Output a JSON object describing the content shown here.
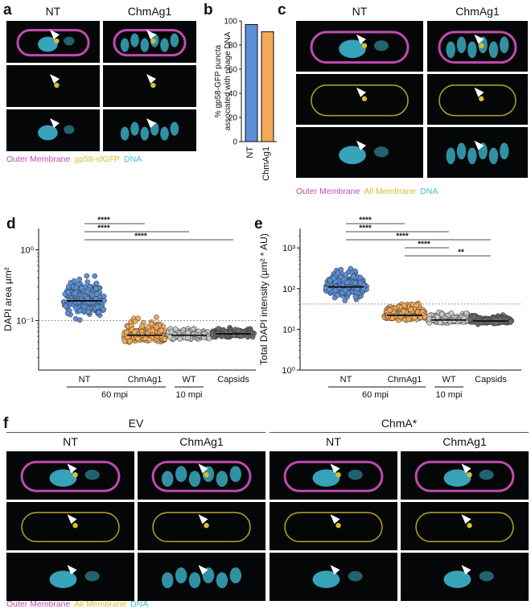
{
  "panels": {
    "a": "a",
    "b": "b",
    "c": "c",
    "d": "d",
    "e": "e",
    "f": "f"
  },
  "colors": {
    "outer_membrane": "#c04ab0",
    "gp58": "#d4c12a",
    "all_membrane": "#d4c12a",
    "dna": "#3fc0d8",
    "nt_bar": "#5b8fd6",
    "chm_bar": "#f2a957",
    "arrow_white": "#ffffff",
    "arrow_orange": "#f07a3a"
  },
  "panel_a": {
    "columns": [
      "NT",
      "ChmAg1"
    ],
    "legend": [
      {
        "text": "Outer Membrane",
        "color": "#c04ab0"
      },
      {
        "text": "gp58-sfGFP",
        "color": "#d4c12a"
      },
      {
        "text": "DNA",
        "color": "#3fc0d8"
      }
    ]
  },
  "panel_c": {
    "columns": [
      "NT",
      "ChmAg1"
    ],
    "legend": [
      {
        "text": "Outer Membrane",
        "color": "#c04ab0"
      },
      {
        "text": "All Membrane",
        "color": "#d4c12a"
      },
      {
        "text": "DNA",
        "color": "#3fc0d8"
      }
    ]
  },
  "panel_f": {
    "groups": [
      "EV",
      "ChmA*"
    ],
    "columns": [
      "NT",
      "ChmAg1",
      "NT",
      "ChmAg1"
    ],
    "legend": [
      {
        "text": "Outer Membrane",
        "color": "#c04ab0"
      },
      {
        "text": "All Membrane",
        "color": "#d4c12a"
      },
      {
        "text": "DNA",
        "color": "#3fc0d8"
      }
    ]
  },
  "chart_data": [
    {
      "panel": "b",
      "type": "bar",
      "categories": [
        "NT",
        "ChmAg1"
      ],
      "values": [
        97,
        91
      ],
      "ylabel": "% gp58-GFP puncta associated with phage DNA",
      "ylim": [
        0,
        100
      ],
      "yticks": [
        "0",
        "20",
        "40",
        "60",
        "80",
        "100"
      ]
    },
    {
      "panel": "d",
      "type": "scatter",
      "ylabel": "DAPI area μm²",
      "yscale": "log",
      "ylim": [
        0.02,
        2
      ],
      "yticks": [
        "10⁻¹",
        "10⁰"
      ],
      "categories": [
        "NT",
        "ChmAg1",
        "WT",
        "Capsids"
      ],
      "medians": [
        0.19,
        0.062,
        0.062,
        0.065
      ],
      "threshold": 0.1,
      "group_labels": [
        "60 mpi",
        "10 mpi"
      ],
      "significance": [
        "****",
        "****",
        "****"
      ]
    },
    {
      "panel": "e",
      "type": "scatter",
      "ylabel": "Total DAPI intensity (μm² * AU)",
      "yscale": "log",
      "ylim": [
        1,
        3000
      ],
      "yticks": [
        "10⁰",
        "10¹",
        "10²",
        "10³"
      ],
      "categories": [
        "NT",
        "ChmAg1",
        "WT",
        "Capsids"
      ],
      "medians": [
        110,
        22,
        17,
        16
      ],
      "threshold": 42,
      "group_labels": [
        "60 mpi",
        "10 mpi"
      ],
      "significance": [
        "****",
        "****",
        "****",
        "****",
        "**"
      ]
    }
  ]
}
